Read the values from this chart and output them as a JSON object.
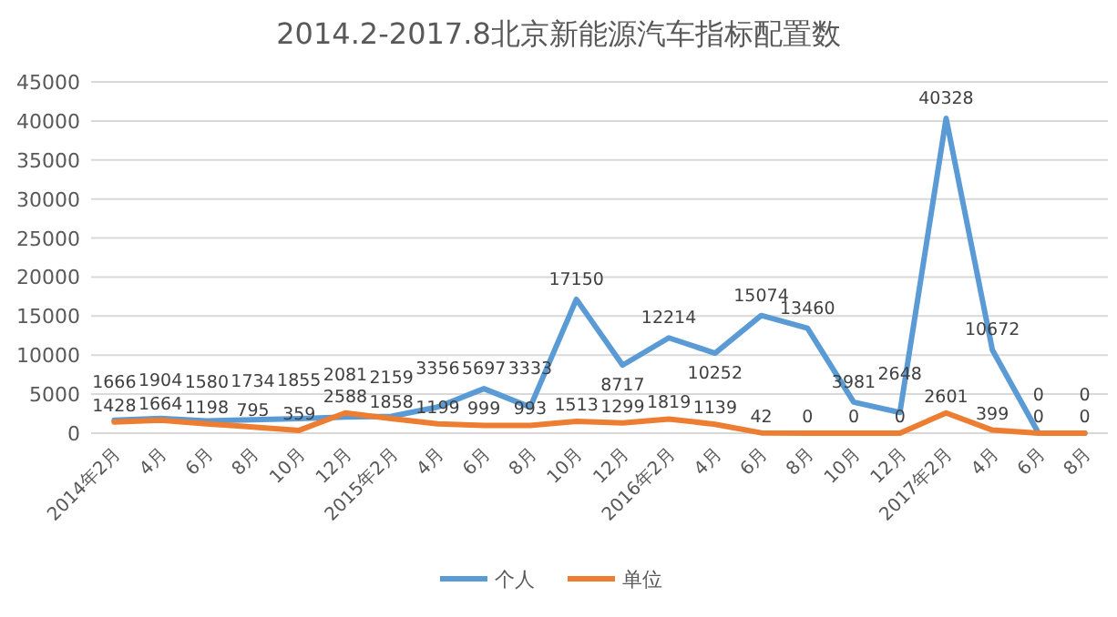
{
  "chart_data": {
    "type": "line",
    "title": "2014.2-2017.8北京新能源汽车指标配置数",
    "categories": [
      "2014年2月",
      "4月",
      "6月",
      "8月",
      "10月",
      "12月",
      "2015年2月",
      "4月",
      "6月",
      "8月",
      "10月",
      "12月",
      "2016年2月",
      "4月",
      "6月",
      "8月",
      "10月",
      "12月",
      "2017年2月",
      "4月",
      "6月",
      "8月"
    ],
    "series": [
      {
        "name": "个人",
        "color": "#5b9bd5",
        "values": [
          1666,
          1904,
          1580,
          1734,
          1855,
          2081,
          2159,
          3356,
          5697,
          3333,
          17150,
          8717,
          12214,
          10252,
          15074,
          13460,
          3981,
          2648,
          40328,
          10672,
          0,
          0
        ]
      },
      {
        "name": "单位",
        "color": "#ed7d31",
        "values": [
          1428,
          1664,
          1198,
          795,
          359,
          2588,
          1858,
          1199,
          999,
          993,
          1513,
          1299,
          1819,
          1139,
          42,
          0,
          0,
          0,
          2601,
          399,
          0,
          0
        ]
      }
    ],
    "ylim": [
      0,
      45000
    ],
    "yticks": [
      0,
      5000,
      10000,
      15000,
      20000,
      25000,
      30000,
      35000,
      40000,
      45000
    ],
    "grid": "y",
    "legend": "bottom",
    "data_labels": true
  }
}
